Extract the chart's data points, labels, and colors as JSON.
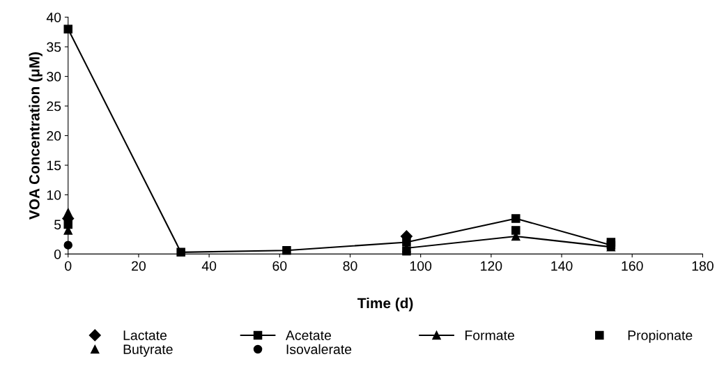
{
  "chart_data": {
    "type": "scatter",
    "xlabel": "Time (d)",
    "ylabel": "VOA Concentration (μM)",
    "xlim": [
      0,
      180
    ],
    "xticks": [
      0,
      20,
      40,
      60,
      80,
      100,
      120,
      140,
      160,
      180
    ],
    "ylim": [
      0,
      40
    ],
    "yticks": [
      0,
      5,
      10,
      15,
      20,
      25,
      30,
      35,
      40
    ],
    "grid": false,
    "legend": "bottom",
    "series": [
      {
        "name": "Lactate",
        "color": "#000000",
        "marker": "diamond",
        "x": [
          0,
          96
        ],
        "values": [
          6,
          3
        ]
      },
      {
        "name": "Acetate",
        "type": "line",
        "color": "#000000",
        "marker": "square",
        "x": [
          0,
          32,
          62,
          96,
          127,
          154
        ],
        "values": [
          38,
          0.3,
          0.6,
          2,
          6,
          1.5
        ]
      },
      {
        "name": "Formate",
        "type": "line",
        "color": "#000000",
        "marker": "triangle",
        "x": [
          0,
          32,
          62,
          96,
          127,
          154
        ],
        "values": [
          7,
          null,
          null,
          1,
          3,
          1.2
        ]
      },
      {
        "name": "Propionate",
        "color": "#000000",
        "marker": "square",
        "x": [
          0,
          96,
          127,
          154
        ],
        "values": [
          5,
          0.5,
          4,
          2
        ]
      },
      {
        "name": "Butyrate",
        "color": "#000000",
        "marker": "triangle",
        "x": [
          0
        ],
        "values": [
          4
        ]
      },
      {
        "name": "Isovalerate",
        "color": "#000000",
        "marker": "circle",
        "x": [
          0
        ],
        "values": [
          1.5
        ]
      }
    ]
  }
}
